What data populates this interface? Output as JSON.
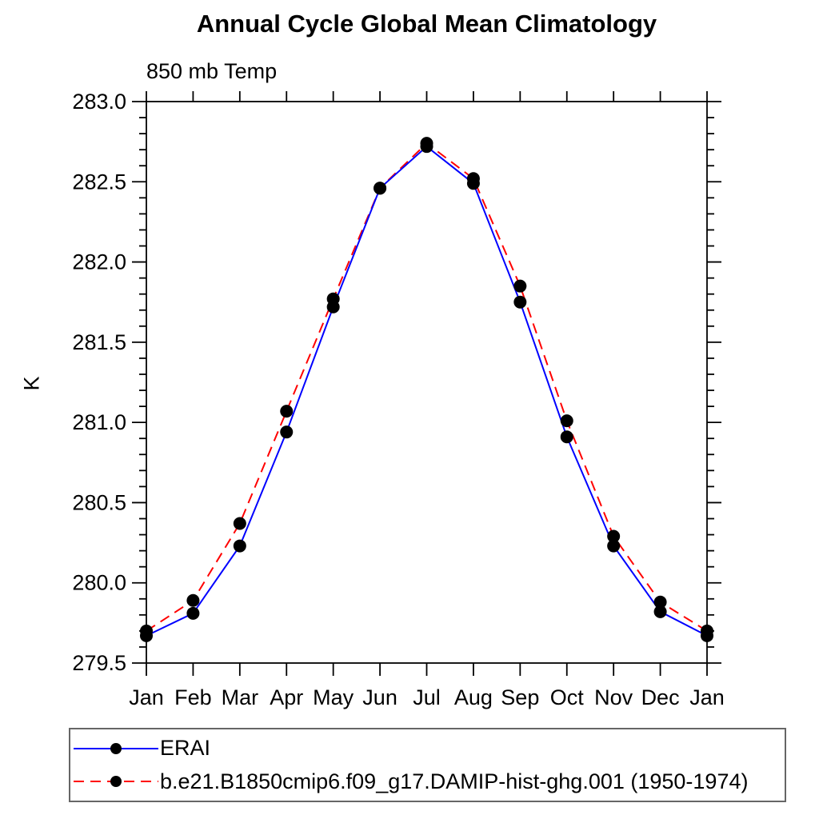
{
  "chart": {
    "title": "Annual Cycle Global Mean Climatology",
    "subtitle": "850 mb Temp",
    "ylabel": "K"
  },
  "chart_data": {
    "type": "line",
    "title": "Annual Cycle Global Mean Climatology",
    "subtitle": "850 mb Temp",
    "xlabel": "",
    "ylabel": "K",
    "categories": [
      "Jan",
      "Feb",
      "Mar",
      "Apr",
      "May",
      "Jun",
      "Jul",
      "Aug",
      "Sep",
      "Oct",
      "Nov",
      "Dec",
      "Jan"
    ],
    "ylim": [
      279.5,
      283.0
    ],
    "ytick_major": 0.5,
    "ytick_minor": 0.1,
    "ytick_label_format_decimals": 1,
    "grid": false,
    "legend_position": "bottom-left-box",
    "axis_color": "#000000",
    "marker_color": "#000000",
    "series": [
      {
        "name": "ERAI",
        "color": "#0000ff",
        "style": "solid",
        "marker": "circle",
        "values": [
          279.67,
          279.81,
          280.23,
          280.94,
          281.72,
          282.46,
          282.72,
          282.49,
          281.75,
          280.91,
          280.23,
          279.82,
          279.67
        ]
      },
      {
        "name": "b.e21.B1850cmip6.f09_g17.DAMIP-hist-ghg.001 (1950-1974)",
        "color": "#ff0000",
        "style": "dashed",
        "marker": "circle",
        "values": [
          279.7,
          279.89,
          280.37,
          281.07,
          281.77,
          282.46,
          282.74,
          282.52,
          281.85,
          281.01,
          280.29,
          279.88,
          279.7
        ]
      }
    ]
  }
}
